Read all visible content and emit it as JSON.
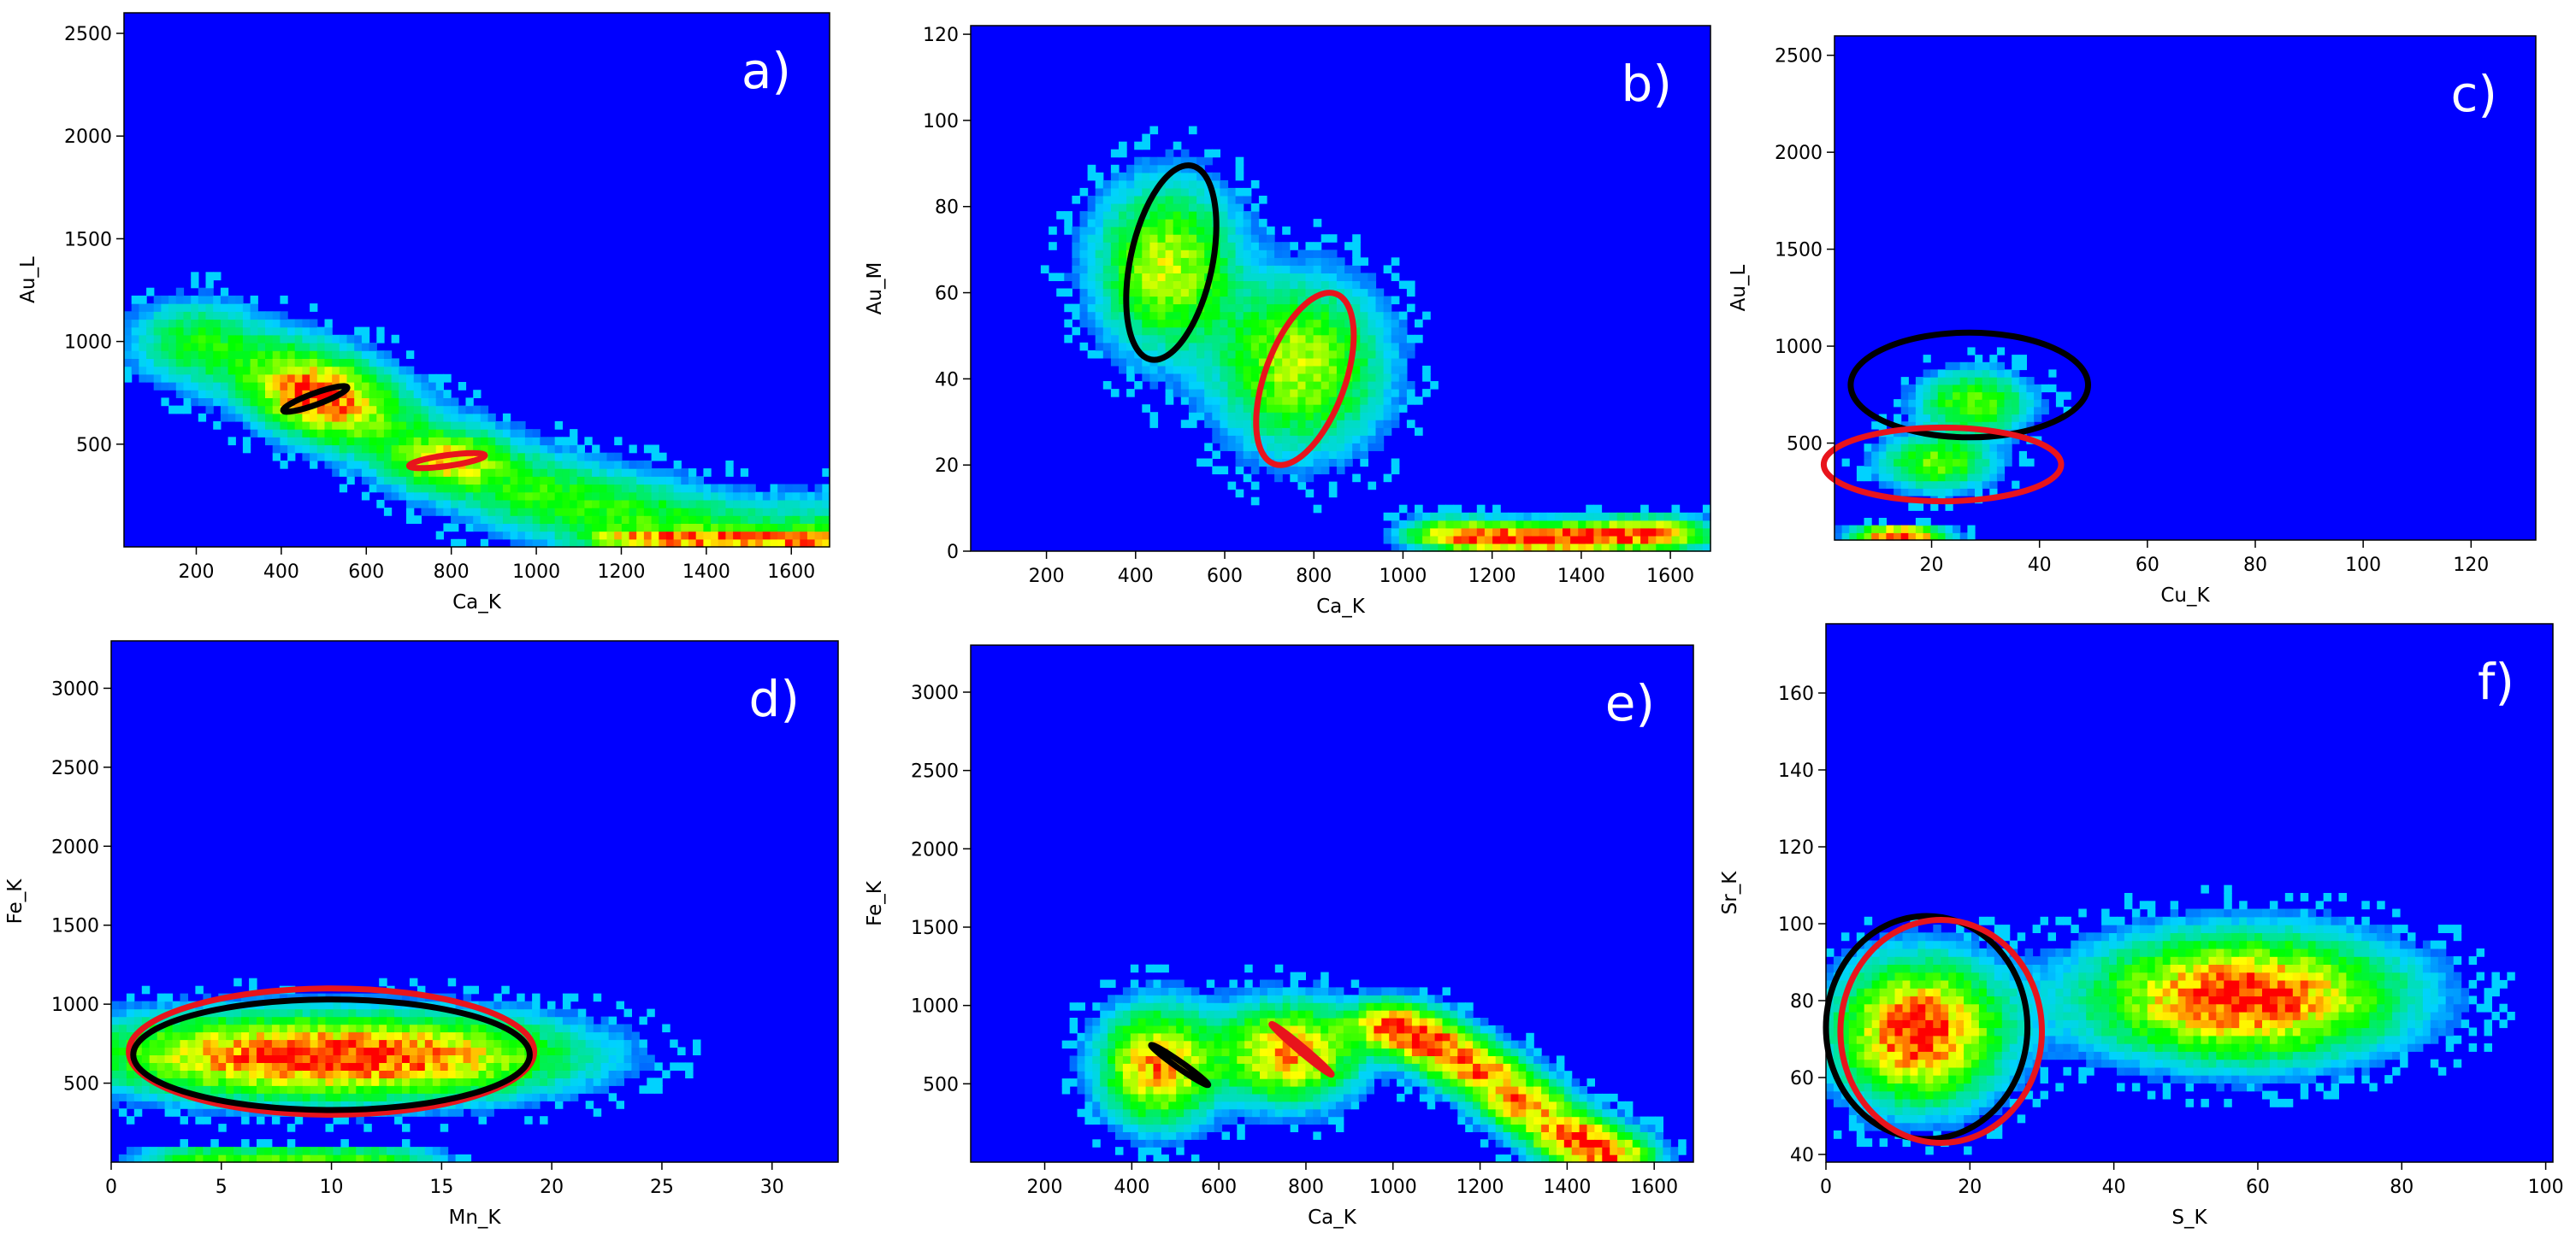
{
  "colors": {
    "background": "#0000ff",
    "density_low": "#00ffff",
    "density_mid": "#00ff00",
    "density_high": "#ffff00",
    "density_peak": "#ff0000",
    "cluster_black": "#000000",
    "cluster_red": "#e8141c"
  },
  "chart_data": [
    {
      "id": "a",
      "type": "heatmap",
      "panel_label": "a)",
      "xlabel": "Ca_K",
      "ylabel": "Au_L",
      "xlim": [
        30,
        1690
      ],
      "ylim": [
        0,
        2600
      ],
      "xticks": [
        200,
        400,
        600,
        800,
        1000,
        1200,
        1400,
        1600
      ],
      "yticks": [
        500,
        1000,
        1500,
        2000,
        2500
      ],
      "grid": false,
      "clusters": [
        {
          "x": [
            200,
            400,
            500,
            600,
            800,
            1000,
            1200,
            1400,
            1650
          ],
          "y": [
            1000,
            850,
            740,
            620,
            420,
            260,
            160,
            60,
            40
          ],
          "spread": [
            0.06,
            0.05
          ],
          "weight": 1.0
        },
        {
          "x": [
            480
          ],
          "y": [
            730
          ],
          "spread": [
            0.045,
            0.035
          ],
          "weight": 1.0
        },
        {
          "x": [
            790
          ],
          "y": [
            420
          ],
          "spread": [
            0.05,
            0.03
          ],
          "weight": 1.0
        },
        {
          "x": [
            1200,
            1300,
            1400,
            1500,
            1600,
            1680
          ],
          "y": [
            40,
            40,
            40,
            40,
            40,
            40
          ],
          "spread": [
            0.04,
            0.01
          ],
          "weight": 1.0
        }
      ],
      "ellipses": [
        {
          "color": "black",
          "cx": 480,
          "cy": 720,
          "rx": 80,
          "ry": 28,
          "angle": -20
        },
        {
          "color": "red",
          "cx": 790,
          "cy": 420,
          "rx": 90,
          "ry": 26,
          "angle": -8
        }
      ]
    },
    {
      "id": "b",
      "type": "heatmap",
      "panel_label": "b)",
      "xlabel": "Ca_K",
      "ylabel": "Au_M",
      "xlim": [
        30,
        1690
      ],
      "ylim": [
        0,
        122
      ],
      "xticks": [
        200,
        400,
        600,
        800,
        1000,
        1200,
        1400,
        1600
      ],
      "yticks": [
        0,
        20,
        40,
        60,
        80,
        100,
        120
      ],
      "grid": false,
      "clusters": [
        {
          "x": [
            470
          ],
          "y": [
            66
          ],
          "spread": [
            0.06,
            0.1
          ],
          "weight": 1.0
        },
        {
          "x": [
            770
          ],
          "y": [
            43
          ],
          "spread": [
            0.07,
            0.1
          ],
          "weight": 1.0
        },
        {
          "x": [
            1100,
            1200,
            1300,
            1400,
            1500,
            1600
          ],
          "y": [
            4,
            3,
            3,
            3,
            4,
            4
          ],
          "spread": [
            0.04,
            0.02
          ],
          "weight": 1.0
        }
      ],
      "ellipses": [
        {
          "color": "black",
          "cx": 480,
          "cy": 67,
          "rx": 92,
          "ry": 23,
          "angle": 12
        },
        {
          "color": "red",
          "cx": 780,
          "cy": 40,
          "rx": 90,
          "ry": 21,
          "angle": 20
        }
      ]
    },
    {
      "id": "c",
      "type": "heatmap",
      "panel_label": "c)",
      "xlabel": "Cu_K",
      "ylabel": "Au_L",
      "xlim": [
        2,
        132
      ],
      "ylim": [
        0,
        2600
      ],
      "xticks": [
        20,
        40,
        60,
        80,
        100,
        120
      ],
      "yticks": [
        500,
        1000,
        1500,
        2000,
        2500
      ],
      "grid": false,
      "clusters": [
        {
          "x": [
            28
          ],
          "y": [
            710
          ],
          "spread": [
            0.05,
            0.04
          ],
          "weight": 1.0
        },
        {
          "x": [
            21
          ],
          "y": [
            400
          ],
          "spread": [
            0.05,
            0.035
          ],
          "weight": 1.0
        },
        {
          "x": [
            10,
            14,
            18
          ],
          "y": [
            30,
            30,
            30
          ],
          "spread": [
            0.03,
            0.01
          ],
          "weight": 1.0
        }
      ],
      "ellipses": [
        {
          "color": "black",
          "cx": 27,
          "cy": 800,
          "rx": 22,
          "ry": 270,
          "angle": 0
        },
        {
          "color": "red",
          "cx": 22,
          "cy": 390,
          "rx": 22,
          "ry": 190,
          "angle": 0
        }
      ]
    },
    {
      "id": "d",
      "type": "heatmap",
      "panel_label": "d)",
      "xlabel": "Mn_K",
      "ylabel": "Fe_K",
      "xlim": [
        0,
        33
      ],
      "ylim": [
        0,
        3300
      ],
      "xticks": [
        0,
        5,
        10,
        15,
        20,
        25,
        30
      ],
      "yticks": [
        500,
        1000,
        1500,
        2000,
        2500,
        3000
      ],
      "grid": false,
      "clusters": [
        {
          "x": [
            4,
            8,
            12,
            16
          ],
          "y": [
            690,
            660,
            660,
            680
          ],
          "spread": [
            0.13,
            0.05
          ],
          "weight": 1.0
        },
        {
          "x": [
            4,
            8,
            12
          ],
          "y": [
            40,
            40,
            40
          ],
          "spread": [
            0.06,
            0.01
          ],
          "weight": 1.0
        }
      ],
      "ellipses": [
        {
          "color": "red",
          "cx": 10,
          "cy": 700,
          "rx": 9.2,
          "ry": 400,
          "angle": 0
        },
        {
          "color": "black",
          "cx": 10,
          "cy": 680,
          "rx": 9.0,
          "ry": 350,
          "angle": 0
        }
      ]
    },
    {
      "id": "e",
      "type": "heatmap",
      "panel_label": "e)",
      "xlabel": "Ca_K",
      "ylabel": "Fe_K",
      "xlim": [
        30,
        1690
      ],
      "ylim": [
        0,
        3300
      ],
      "xticks": [
        200,
        400,
        600,
        800,
        1000,
        1200,
        1400,
        1600
      ],
      "yticks": [
        500,
        1000,
        1500,
        2000,
        2500,
        3000
      ],
      "grid": false,
      "clusters": [
        {
          "x": [
            460
          ],
          "y": [
            620
          ],
          "spread": [
            0.05,
            0.07
          ],
          "weight": 1.0
        },
        {
          "x": [
            760
          ],
          "y": [
            700
          ],
          "spread": [
            0.06,
            0.06
          ],
          "weight": 1.0
        },
        {
          "x": [
            1000,
            1100,
            1200,
            1300,
            1400,
            1500
          ],
          "y": [
            880,
            750,
            580,
            380,
            180,
            40
          ],
          "spread": [
            0.04,
            0.03
          ],
          "weight": 1.0
        }
      ],
      "ellipses": [
        {
          "color": "black",
          "cx": 510,
          "cy": 620,
          "rx": 80,
          "ry": 20,
          "angle": 35
        },
        {
          "color": "red",
          "cx": 790,
          "cy": 720,
          "rx": 90,
          "ry": 18,
          "angle": 40
        }
      ]
    },
    {
      "id": "f",
      "type": "heatmap",
      "panel_label": "f)",
      "xlabel": "S_K",
      "ylabel": "Sr_K",
      "xlim": [
        0,
        101
      ],
      "ylim": [
        38,
        178
      ],
      "xticks": [
        0,
        20,
        40,
        60,
        80,
        100
      ],
      "yticks": [
        40,
        60,
        80,
        100,
        120,
        140,
        160
      ],
      "grid": false,
      "clusters": [
        {
          "x": [
            13
          ],
          "y": [
            72
          ],
          "spread": [
            0.07,
            0.08
          ],
          "weight": 1.0
        },
        {
          "x": [
            58
          ],
          "y": [
            81
          ],
          "spread": [
            0.13,
            0.07
          ],
          "weight": 1.0
        }
      ],
      "ellipses": [
        {
          "color": "black",
          "cx": 14,
          "cy": 73,
          "rx": 14,
          "ry": 29,
          "angle": 0
        },
        {
          "color": "red",
          "cx": 16,
          "cy": 72,
          "rx": 14,
          "ry": 29,
          "angle": 0
        }
      ]
    }
  ]
}
